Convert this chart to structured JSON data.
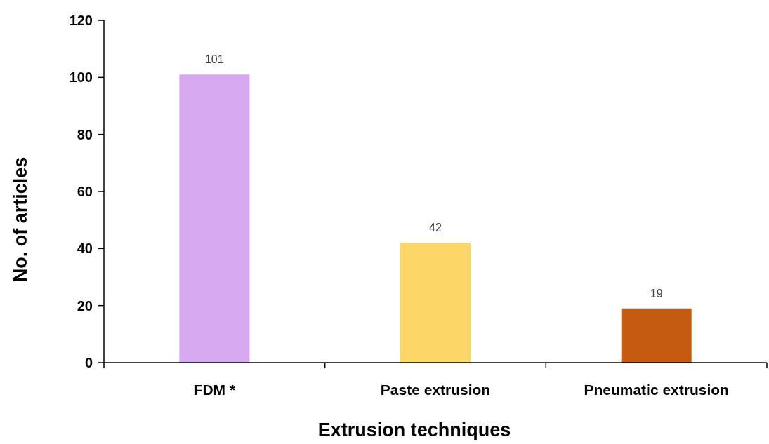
{
  "chart_data": {
    "type": "bar",
    "xlabel": "Extrusion techniques",
    "ylabel": "No. of articles",
    "categories": [
      "FDM *",
      "Paste extrusion",
      "Pneumatic extrusion"
    ],
    "values": [
      101,
      42,
      19
    ],
    "colors": [
      "#d5a9f0",
      "#fcd768",
      "#c55a11"
    ],
    "ylim": [
      0,
      120
    ],
    "yticks": [
      0,
      20,
      40,
      60,
      80,
      100,
      120
    ],
    "data_labels": true
  }
}
